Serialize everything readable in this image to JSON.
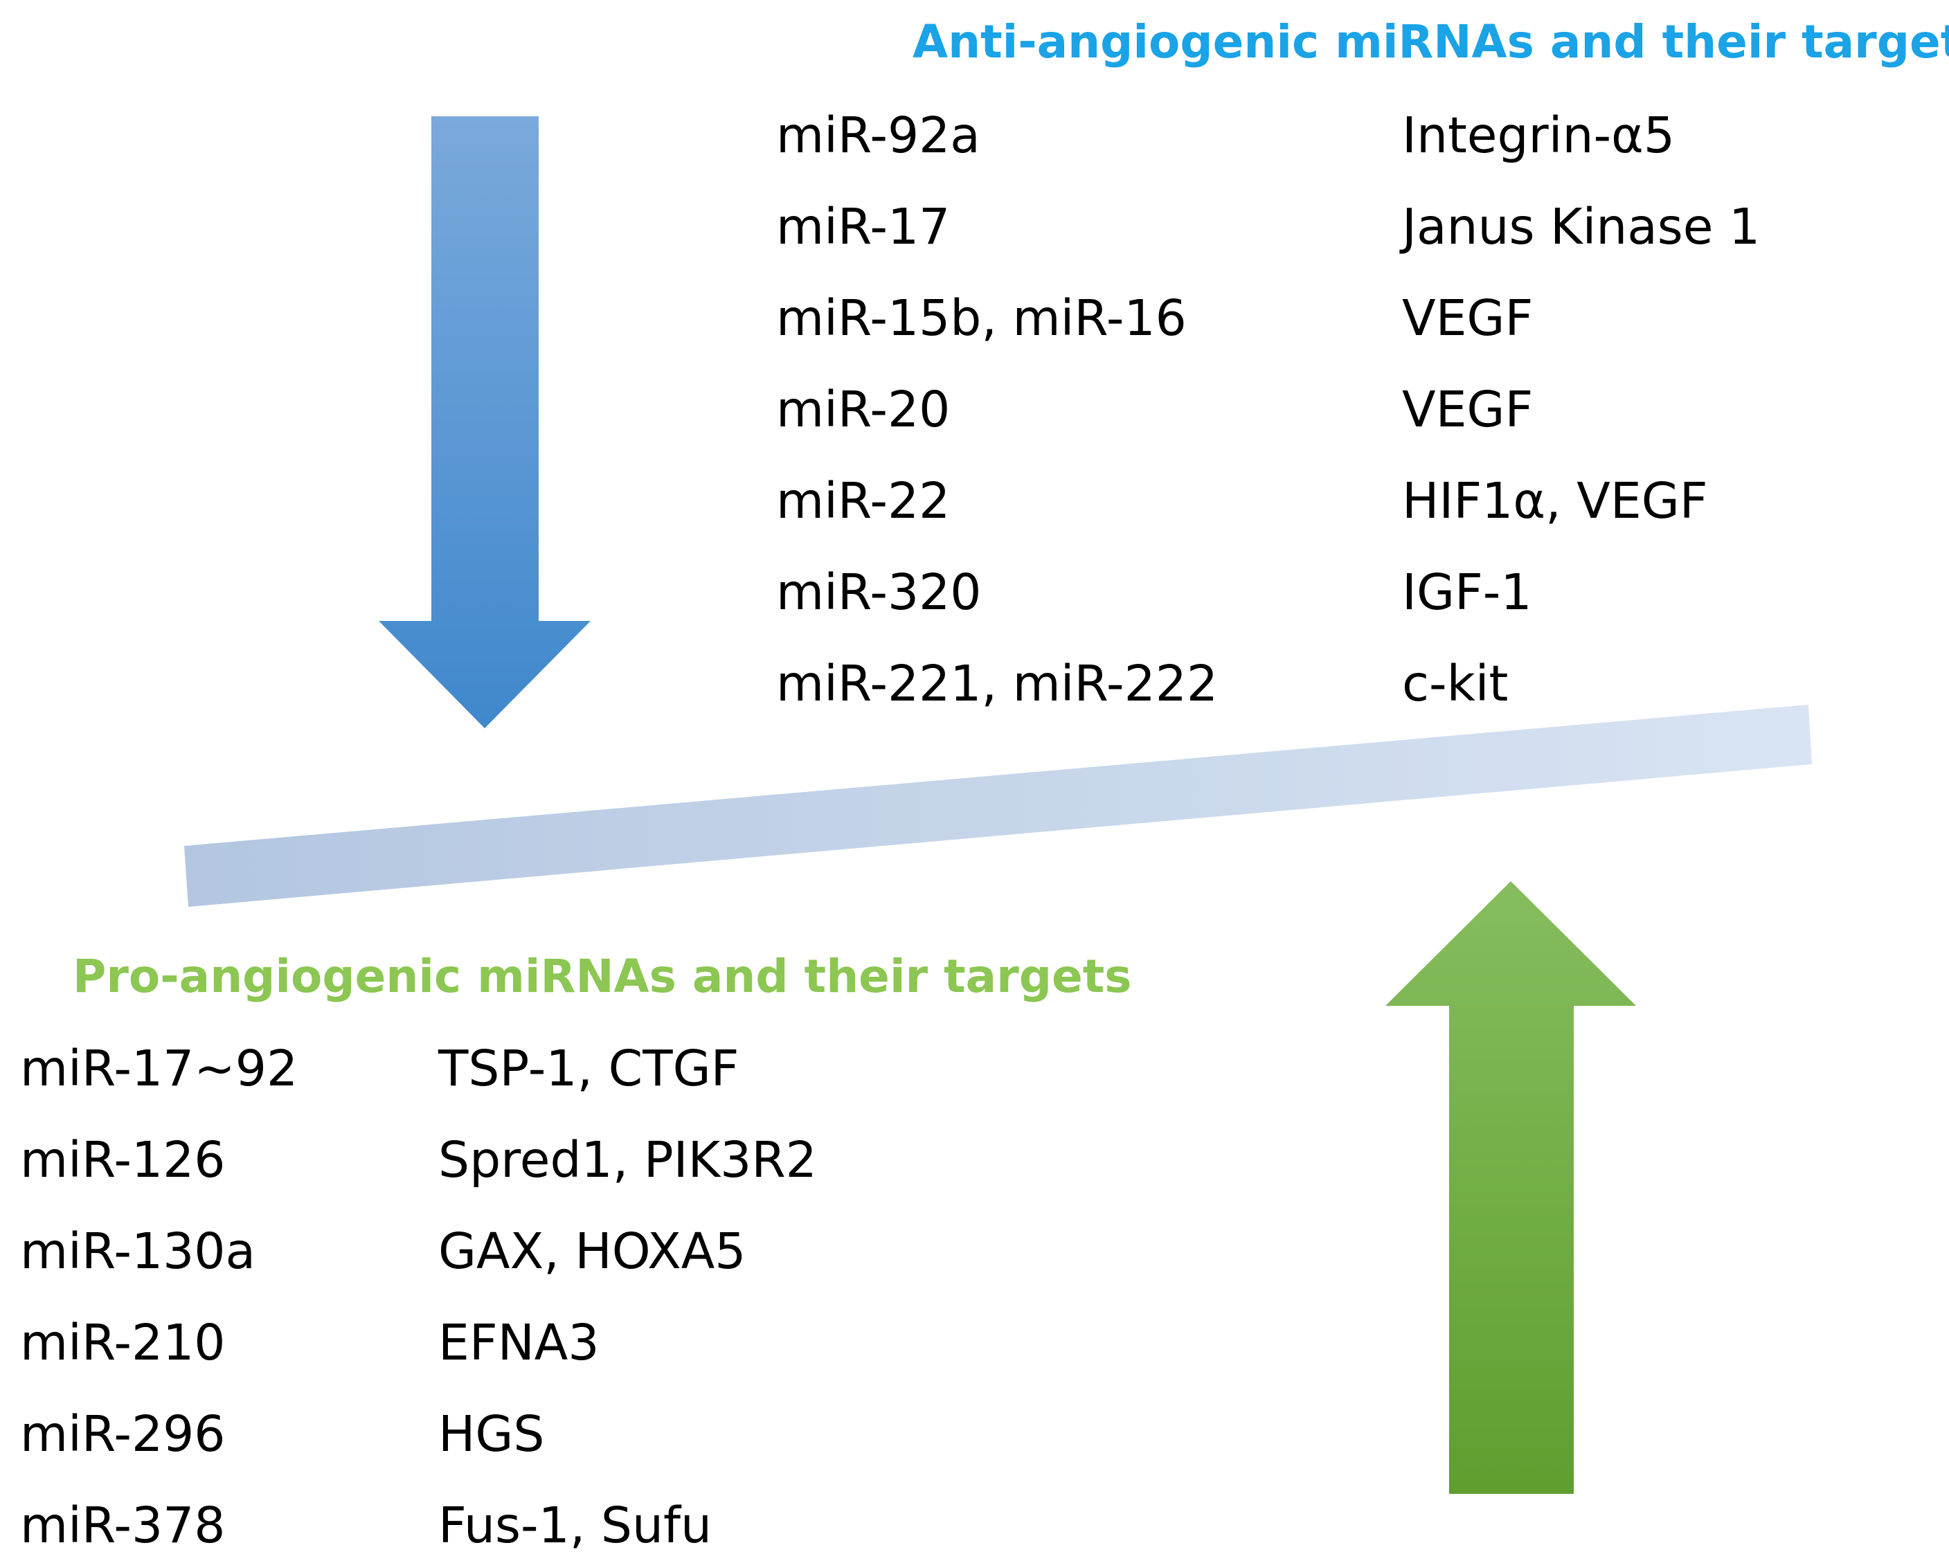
{
  "anti": {
    "title": "Anti-angiogenic miRNAs and their targets",
    "title_color": "#1aa3e6",
    "arrow_color_top": "#7aa9dc",
    "arrow_color_bottom": "#3f88cc",
    "rows": [
      {
        "mirna": "miR-92a",
        "target": "Integrin-α5"
      },
      {
        "mirna": "miR-17",
        "target": "Janus Kinase 1"
      },
      {
        "mirna": "miR-15b, miR-16",
        "target": "VEGF"
      },
      {
        "mirna": "miR-20",
        "target": "VEGF"
      },
      {
        "mirna": "miR-22",
        "target": "HIF1α, VEGF"
      },
      {
        "mirna": "miR-320",
        "target": "IGF-1"
      },
      {
        "mirna": "miR-221, miR-222",
        "target": "c-kit"
      }
    ]
  },
  "pro": {
    "title": "Pro-angiogenic miRNAs and their targets",
    "title_color": "#8cc653",
    "arrow_color_top": "#86bd5e",
    "arrow_color_bottom": "#5f9e2f",
    "rows": [
      {
        "mirna": "miR-17~92",
        "target": "TSP-1, CTGF"
      },
      {
        "mirna": "miR-126",
        "target": "Spred1, PIK3R2"
      },
      {
        "mirna": "miR-130a",
        "target": "GAX, HOXA5"
      },
      {
        "mirna": "miR-210",
        "target": "EFNA3"
      },
      {
        "mirna": "miR-296",
        "target": "HGS"
      },
      {
        "mirna": "miR-378",
        "target": "Fus-1, Sufu"
      }
    ]
  },
  "balance_bar": {
    "color_light": "#d9e4f3",
    "color_dark": "#b3c6e0"
  }
}
